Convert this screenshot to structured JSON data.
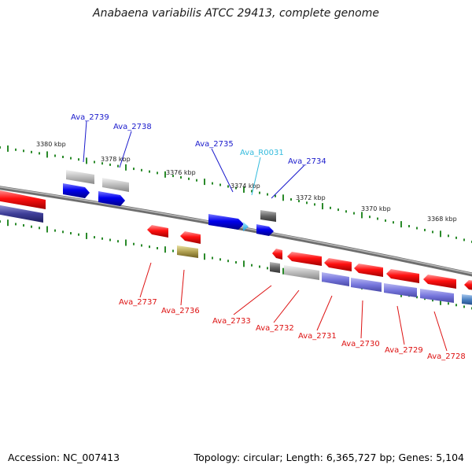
{
  "title": "Anabaena variabilis ATCC 29413, complete genome",
  "accession_text": "Accession: NC_007413",
  "topology_text": "Topology: circular; Length: 6,365,727 bp; Genes: 5,104",
  "kbp_labels": [
    "3380 kbp",
    "3378 kbp",
    "3376 kbp",
    "3374 kbp",
    "3372 kbp",
    "3370 kbp",
    "3368 kbp"
  ],
  "gene_labels": {
    "forward": [
      "Ava_2739",
      "Ava_2738",
      "Ava_2735",
      "Ava_R0031",
      "Ava_2734"
    ],
    "reverse": [
      "Ava_2737",
      "Ava_2736",
      "Ava_2733",
      "Ava_2732",
      "Ava_2731",
      "Ava_2730",
      "Ava_2729",
      "Ava_2728"
    ]
  },
  "colors": {
    "forward_label": "#1a1acc",
    "rna_label": "#33bbdd",
    "reverse_label": "#dd1111",
    "backbone": "#888888",
    "tick": "#2a8a2a"
  }
}
